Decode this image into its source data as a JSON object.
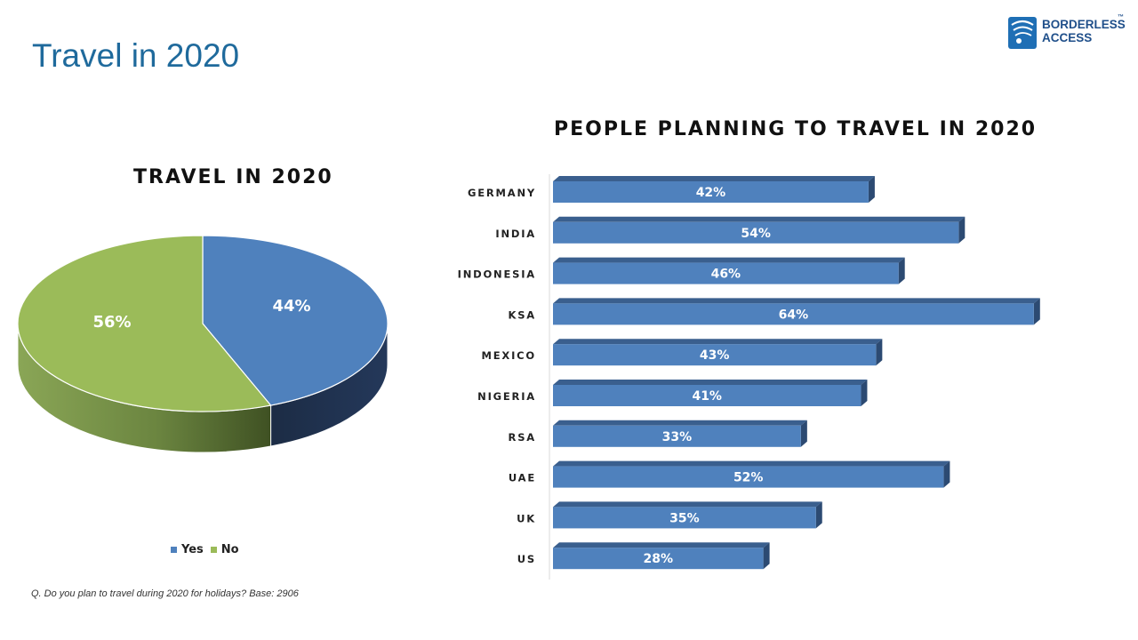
{
  "page": {
    "title": "Travel in 2020",
    "footnote": "Q. Do you plan to travel during 2020 for holidays? Base: 2906"
  },
  "logo": {
    "line1": "BORDERLESS",
    "line2": "ACCESS",
    "tm": "™"
  },
  "colors": {
    "title": "#1f6a9c",
    "yes": "#4f81bd",
    "no": "#9bbb59",
    "bar": "#4f81bd"
  },
  "chart_data": [
    {
      "type": "pie",
      "title": "TRAVEL IN 2020",
      "labels": [
        "Yes",
        "No"
      ],
      "values": [
        44,
        56
      ],
      "value_labels": [
        "44%",
        "56%"
      ],
      "legend": "bottom",
      "style": "3d"
    },
    {
      "type": "bar",
      "orientation": "horizontal",
      "title": "PEOPLE PLANNING TO TRAVEL IN 2020",
      "categories": [
        "GERMANY",
        "INDIA",
        "INDONESIA",
        "KSA",
        "MEXICO",
        "NIGERIA",
        "RSA",
        "UAE",
        "UK",
        "US"
      ],
      "values": [
        42,
        54,
        46,
        64,
        43,
        41,
        33,
        52,
        35,
        28
      ],
      "value_labels": [
        "42%",
        "54%",
        "46%",
        "64%",
        "43%",
        "41%",
        "33%",
        "52%",
        "35%",
        "28%"
      ],
      "unit": "%",
      "style": "3d"
    }
  ]
}
